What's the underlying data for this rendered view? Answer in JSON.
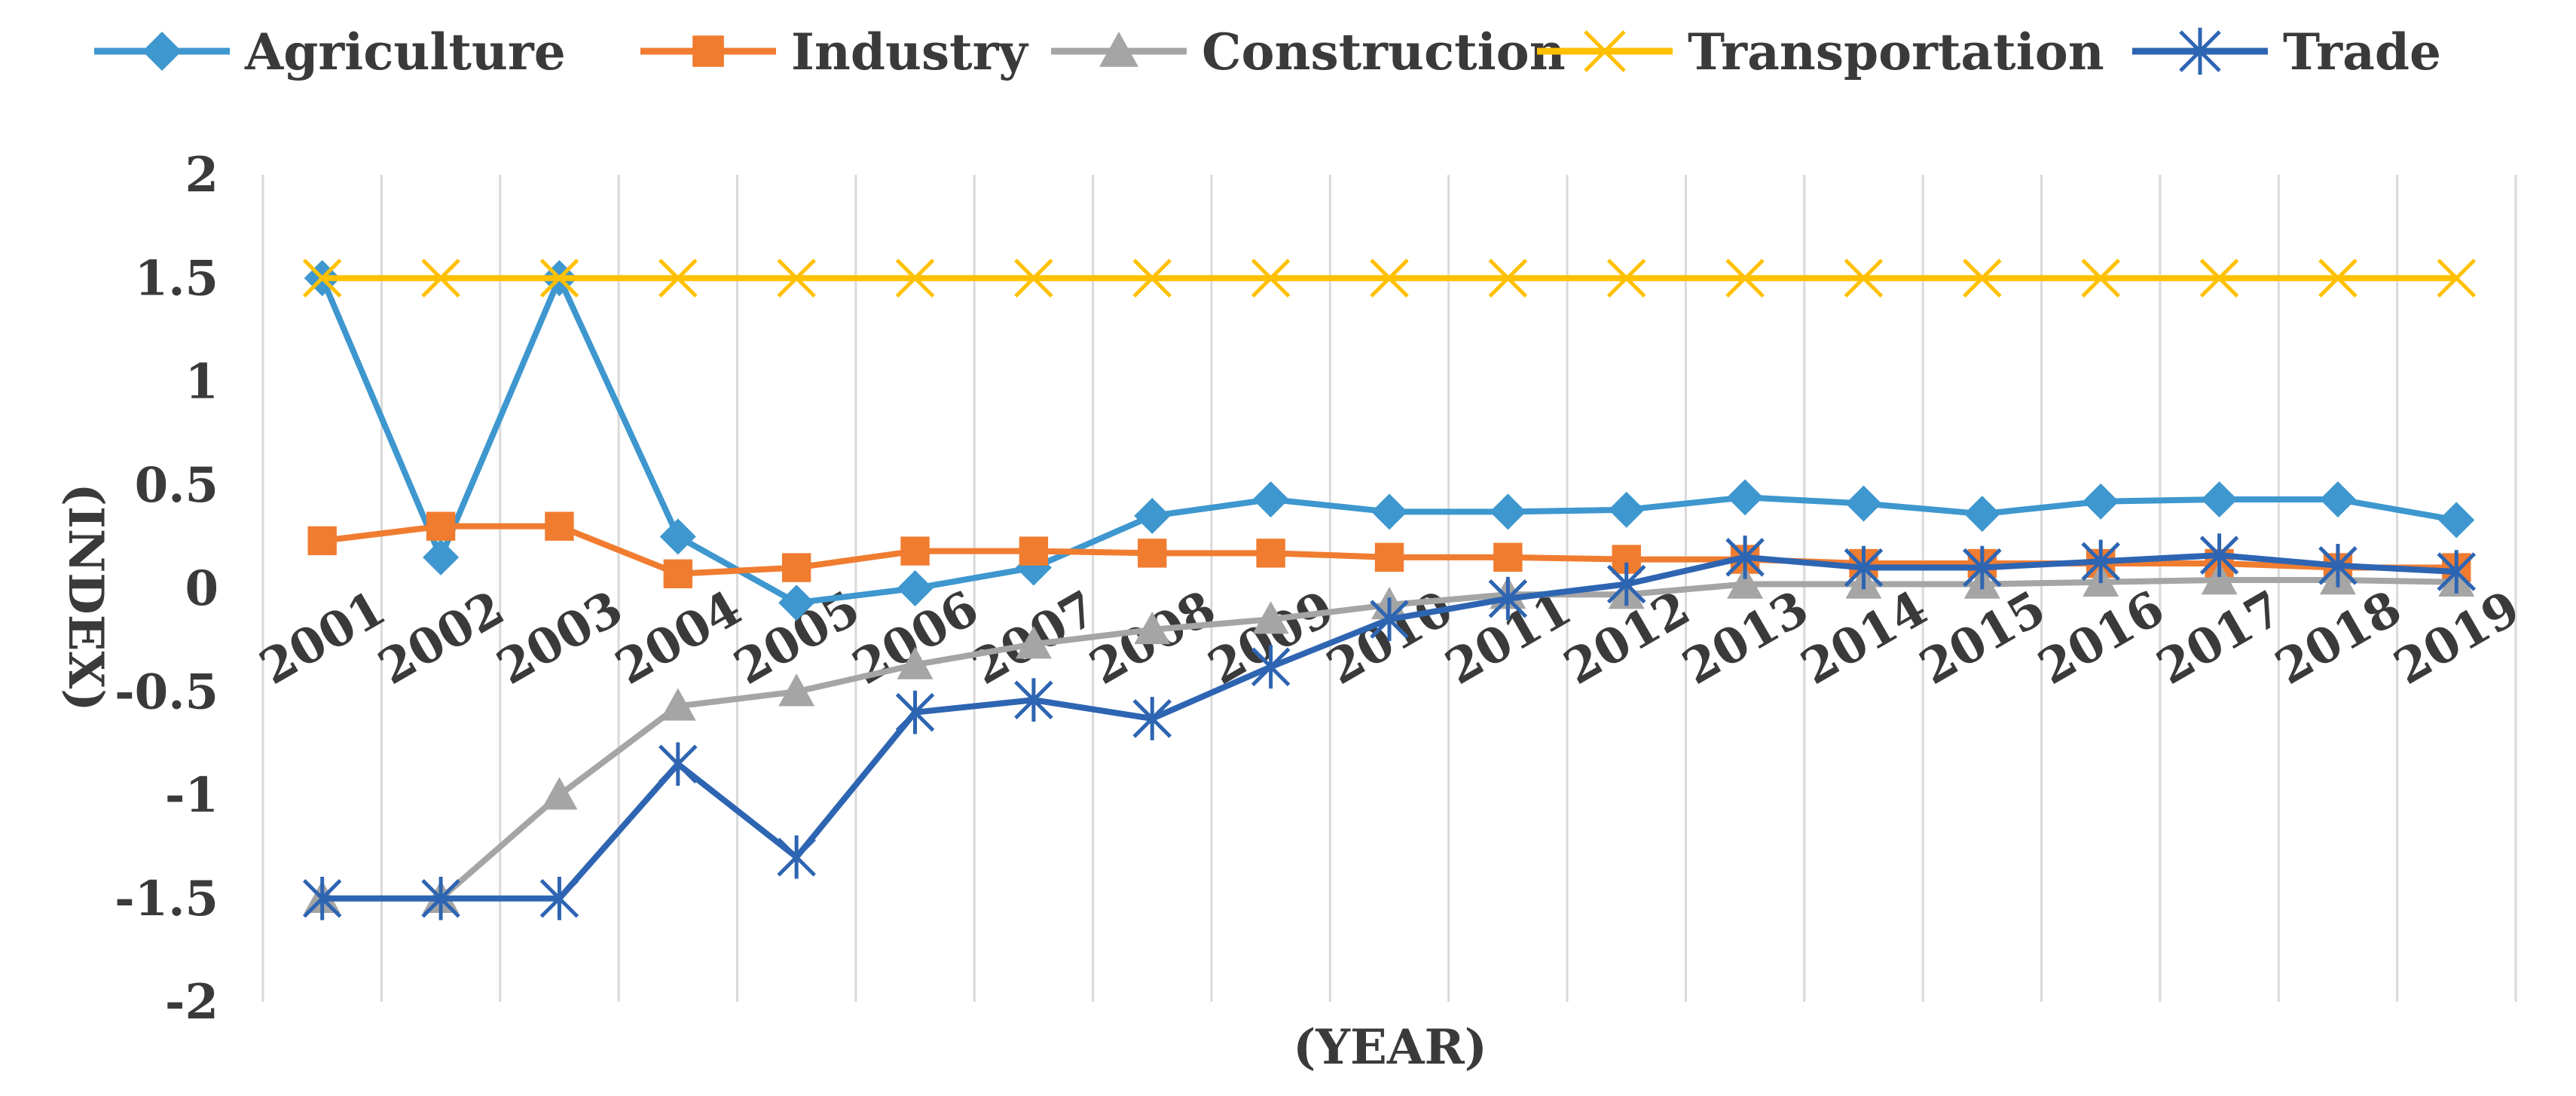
{
  "chart_data": {
    "type": "line",
    "title": "",
    "xlabel": "(YEAR)",
    "ylabel": "(INDEX)",
    "ylim": [
      -2,
      2
    ],
    "yticks": [
      2,
      1.5,
      1,
      0.5,
      0,
      -0.5,
      -1,
      -1.5,
      -2
    ],
    "ytick_labels": [
      "2",
      "1.5",
      "1",
      "0.5",
      "0",
      "-0.5",
      "-1",
      "-1.5",
      "-2"
    ],
    "categories": [
      "2001",
      "2002",
      "2003",
      "2004",
      "2005",
      "2006",
      "2007",
      "2008",
      "2009",
      "2010",
      "2011",
      "2012",
      "2013",
      "2014",
      "2015",
      "2016",
      "2017",
      "2018",
      "2019"
    ],
    "legend_position": "top",
    "grid": "vertical",
    "series": [
      {
        "name": "Agriculture",
        "color": "#3E97CE",
        "marker": "diamond",
        "values": [
          1.5,
          0.15,
          1.5,
          0.25,
          -0.07,
          0.0,
          0.1,
          0.35,
          0.43,
          0.37,
          0.37,
          0.38,
          0.44,
          0.41,
          0.36,
          0.42,
          0.43,
          0.43,
          0.33
        ]
      },
      {
        "name": "Industry",
        "color": "#F07C30",
        "marker": "square",
        "values": [
          0.23,
          0.3,
          0.3,
          0.07,
          0.1,
          0.18,
          0.18,
          0.17,
          0.17,
          0.15,
          0.15,
          0.14,
          0.14,
          0.12,
          0.12,
          0.12,
          0.12,
          0.1,
          0.1
        ]
      },
      {
        "name": "Construction",
        "color": "#A5A5A5",
        "marker": "triangle",
        "values": [
          -1.5,
          -1.5,
          -1.0,
          -0.57,
          -0.5,
          -0.37,
          -0.27,
          -0.2,
          -0.15,
          -0.08,
          -0.03,
          -0.03,
          0.02,
          0.02,
          0.02,
          0.03,
          0.04,
          0.04,
          0.03
        ]
      },
      {
        "name": "Transportation",
        "color": "#FFC000",
        "marker": "x",
        "values": [
          1.5,
          1.5,
          1.5,
          1.5,
          1.5,
          1.5,
          1.5,
          1.5,
          1.5,
          1.5,
          1.5,
          1.5,
          1.5,
          1.5,
          1.5,
          1.5,
          1.5,
          1.5,
          1.5
        ]
      },
      {
        "name": "Trade",
        "color": "#2E65B2",
        "marker": "asterisk",
        "values": [
          -1.5,
          -1.5,
          -1.5,
          -0.85,
          -1.3,
          -0.6,
          -0.54,
          -0.63,
          -0.38,
          -0.15,
          -0.05,
          0.02,
          0.15,
          0.1,
          0.1,
          0.13,
          0.16,
          0.11,
          0.08
        ]
      }
    ]
  }
}
